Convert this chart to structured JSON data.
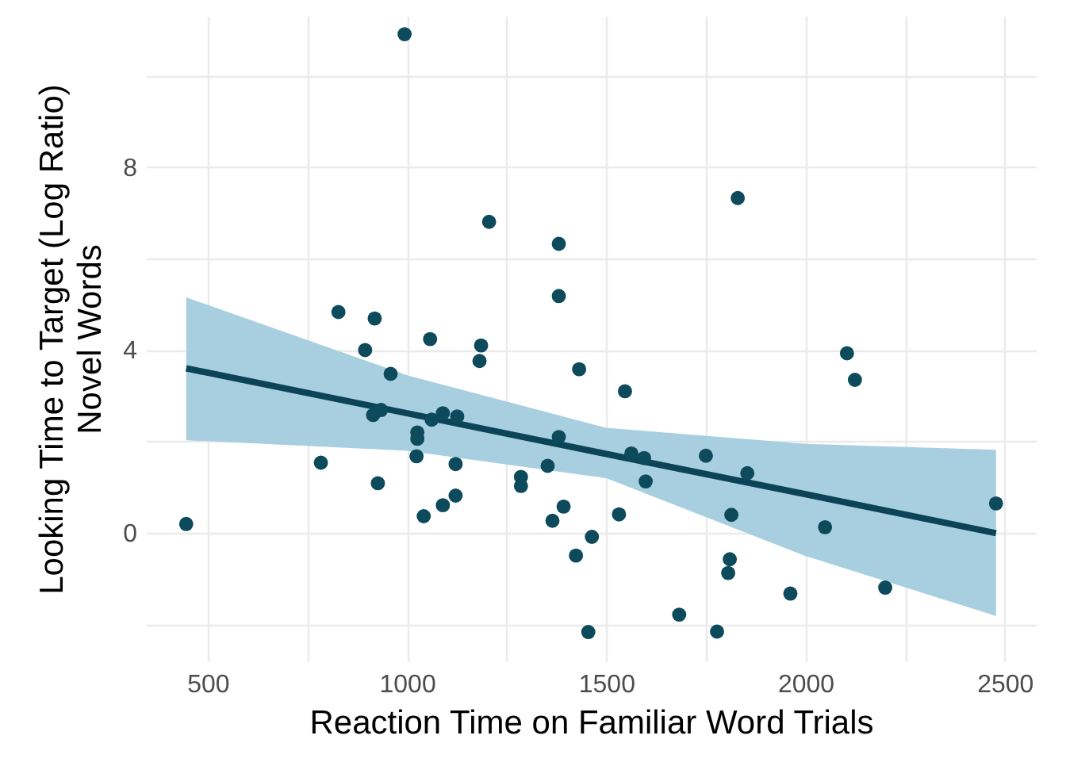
{
  "chart_data": {
    "type": "scatter",
    "xlabel": "Reaction Time on Familiar Word Trials",
    "ylabel": "Looking Time to Target (Log Ratio)\nNovel Words",
    "xlim": [
      345,
      2578
    ],
    "ylim": [
      -2.8,
      11.3
    ],
    "xticks": [
      500,
      {
        "value": 750,
        "label": null
      },
      1000,
      {
        "value": 1250,
        "label": null
      },
      1500,
      {
        "value": 1750,
        "label": null
      },
      2000,
      {
        "value": 2250,
        "label": null
      },
      2500
    ],
    "yticks": [
      {
        "value": -2,
        "label": null
      },
      0,
      {
        "value": 2,
        "label": null
      },
      4,
      {
        "value": 6,
        "label": null
      },
      8,
      {
        "value": 10,
        "label": null
      }
    ],
    "grid": true,
    "marker": "circle",
    "series": [
      {
        "color": "#0d4a5c",
        "x": [
          994,
          1830,
          1206,
          1381,
          1381,
          828,
          919,
          895,
          1058,
          1186,
          1182,
          1432,
          959,
          915,
          935,
          1026,
          1026,
          1024,
          1062,
          1090,
          1126,
          784,
          927,
          1122,
          1122,
          1090,
          1042,
          1286,
          1286,
          1353,
          1381,
          1393,
          1365,
          1464,
          1424,
          1455,
          446,
          2104,
          2124,
          1547,
          1563,
          1595,
          1599,
          1750,
          1854,
          1814,
          1532,
          2049,
          2478,
          1810,
          1806,
          1962,
          2200,
          1683,
          1778
        ],
        "values": [
          10.9,
          7.32,
          6.8,
          6.32,
          5.18,
          4.83,
          4.69,
          4.0,
          4.24,
          4.1,
          3.76,
          3.58,
          3.48,
          2.58,
          2.69,
          2.2,
          2.06,
          1.68,
          2.48,
          2.62,
          2.55,
          1.54,
          1.09,
          1.51,
          0.82,
          0.61,
          0.37,
          1.23,
          1.03,
          1.47,
          2.1,
          0.58,
          0.27,
          -0.08,
          -0.49,
          -2.16,
          0.2,
          3.93,
          3.35,
          3.1,
          1.74,
          1.64,
          1.13,
          1.69,
          1.31,
          0.4,
          0.41,
          0.13,
          0.65,
          -0.57,
          -0.87,
          -1.32,
          -1.19,
          -1.78,
          -2.15
        ]
      },
      {
        "type": "line",
        "marker": "none",
        "color": "#0b4357",
        "x": [
          446,
          1000,
          1500,
          2000,
          2478
        ],
        "values": [
          3.6,
          2.62,
          1.73,
          0.85,
          0.0
        ],
        "lower": [
          2.03,
          1.8,
          1.2,
          -0.5,
          -1.81
        ],
        "upper": [
          5.15,
          3.45,
          2.3,
          1.95,
          1.82
        ]
      }
    ]
  }
}
